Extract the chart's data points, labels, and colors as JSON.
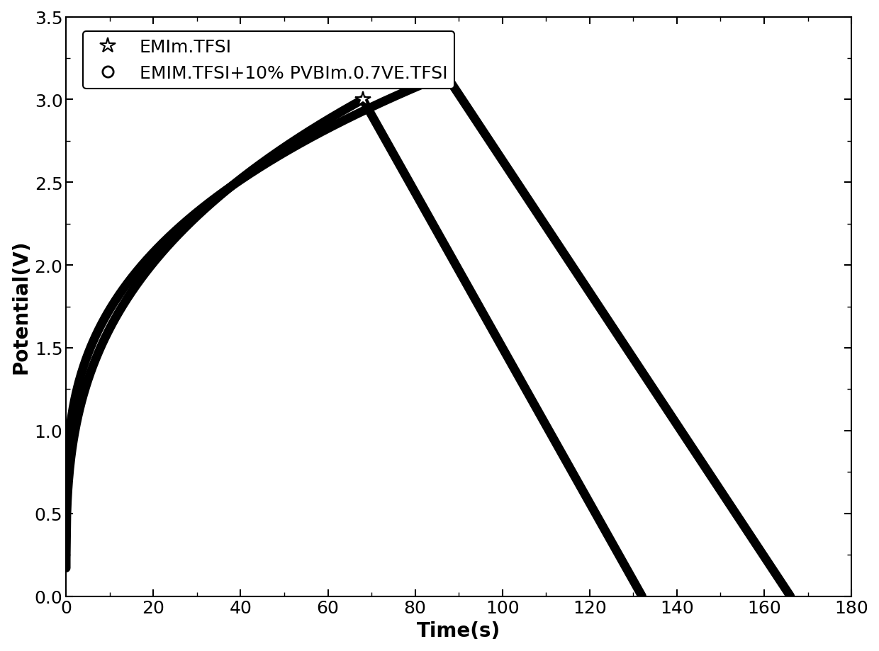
{
  "series1_label": "EMIm.TFSI",
  "series2_label": "EMIM.TFSI+10% PVBIm.0.7VE.TFSI",
  "series1_color": "#000000",
  "series2_color": "#000000",
  "xlabel": "Time(s)",
  "ylabel": "Potential(V)",
  "xlim": [
    0,
    180
  ],
  "ylim": [
    0.0,
    3.5
  ],
  "xticks": [
    0,
    20,
    40,
    60,
    80,
    100,
    120,
    140,
    160,
    180
  ],
  "yticks": [
    0.0,
    0.5,
    1.0,
    1.5,
    2.0,
    2.5,
    3.0,
    3.5
  ],
  "background_color": "#ffffff",
  "linewidth": 9.0,
  "series1": {
    "charge_start_t": 0,
    "charge_start_v": 0.17,
    "charge_end_t": 68,
    "charge_end_v": 3.0,
    "discharge_end_t": 132,
    "discharge_end_v": 0.0
  },
  "series2": {
    "charge_start_t": 0,
    "charge_start_v": 0.48,
    "charge_end_t": 87,
    "charge_end_v": 3.15,
    "discharge_end_t": 166,
    "discharge_end_v": 0.0
  },
  "legend_fontsize": 18,
  "axis_label_fontsize": 20,
  "tick_label_fontsize": 18
}
